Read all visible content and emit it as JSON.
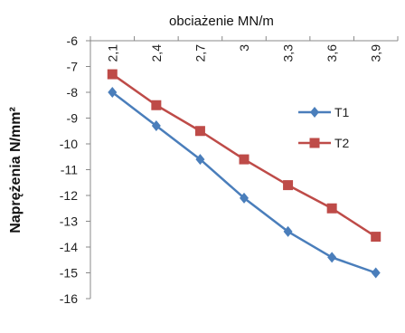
{
  "chart_data": {
    "type": "line",
    "title": "",
    "xlabel": "obciażenie MN/m",
    "ylabel": "Naprężenia N/mm²",
    "x": [
      "2,1",
      "2,4",
      "2,7",
      "3",
      "3,3",
      "3,6",
      "3,9"
    ],
    "y_ticks": [
      "-6",
      "-7",
      "-8",
      "-9",
      "-10",
      "-11",
      "-12",
      "-13",
      "-14",
      "-15",
      "-16"
    ],
    "ylim": [
      -16,
      -6
    ],
    "grid": false,
    "legend_position": "right",
    "x_axis_position": "top",
    "series": [
      {
        "name": "T1",
        "color": "#4a7ebb",
        "marker": "diamond",
        "values": [
          -8.0,
          -9.3,
          -10.6,
          -12.1,
          -13.4,
          -14.4,
          -15.0
        ]
      },
      {
        "name": "T2",
        "color": "#be4b48",
        "marker": "square",
        "values": [
          -7.3,
          -8.5,
          -9.5,
          -10.6,
          -11.6,
          -12.5,
          -13.6
        ]
      }
    ]
  }
}
